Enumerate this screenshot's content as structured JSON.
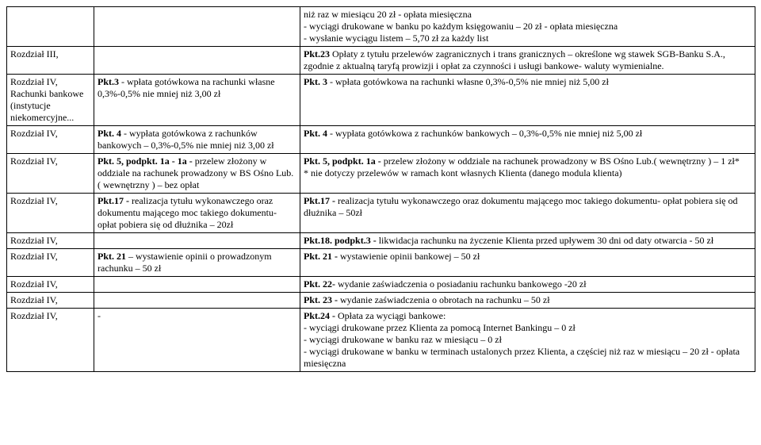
{
  "rows": [
    {
      "c1": "",
      "c2": "",
      "c3": "niż raz w miesiącu 20 zł ‑ opłata miesięczna\n‑ wyciągi drukowane w banku po każdym księgowaniu – 20 zł ‑ opłata miesięczna\n‑ wysłanie wyciągu listem – 5,70 zł za każdy list"
    },
    {
      "c1": "Rozdział III,",
      "c2": "",
      "c3_pre": "",
      "c3_bold": "Pkt.23",
      "c3_post": " Opłaty z tytułu przelewów zagranicznych i trans granicznych – określone wg stawek SGB‑Banku S.A., zgodnie z aktualną taryfą prowizji i opłat za czynności i usługi bankowe‑ waluty wymienialne."
    },
    {
      "c1": "Rozdział IV, Rachunki bankowe (instytucje niekomercyjne...",
      "c2": "",
      "c2_bold": "Pkt.3",
      "c2_rest": " ‑ wpłata gotówkowa na rachunki własne 0,3%‑0,5% nie mniej niż 3,00 zł",
      "c3_pre": "",
      "c3_bold": "Pkt. 3",
      "c3_post": " ‑ wpłata gotówkowa na rachunki własne 0,3%‑0,5% nie mniej niż 5,00 zł"
    },
    {
      "c1": "Rozdział IV,",
      "c2": "",
      "c2_bold": "Pkt. 4",
      "c2_rest": " ‑ wypłata gotówkowa z rachunków bankowych – 0,3%‑0,5% nie mniej niż 3,00 zł",
      "c3_pre": "",
      "c3_bold": "Pkt. 4",
      "c3_post": " ‑ wypłata gotówkowa z rachunków bankowych – 0,3%‑0,5% nie mniej niż 5,00 zł"
    },
    {
      "c1": "Rozdział IV,",
      "c2": "",
      "c2_bold": "Pkt. 5, podpkt. 1a ‑ 1a ‑",
      "c2_rest": " przelew złożony w oddziale na rachunek prowadzony w BS Ośno Lub.( wewnętrzny ) – bez opłat",
      "c3_bold1": "Pkt. 5, podpkt. 1a ‑",
      "c3_mid": " przelew złożony w oddziale na rachunek prowadzony w BS Ośno Lub.( wewnętrzny ) – 1 zł*\n* nie dotyczy przelewów  w ramach kont własnych Klienta (danego modula klienta)"
    },
    {
      "c1": "Rozdział IV,",
      "c2": "",
      "c2_bold": "Pkt.17 ‑",
      "c2_rest": " realizacja tytułu wykonawczego oraz dokumentu mającego moc takiego dokumentu‑ opłat pobiera się od dłużnika – 20zł",
      "c3_pre": "",
      "c3_bold": "Pkt.17 ‑",
      "c3_post": " realizacja tytułu wykonawczego oraz dokumentu mającego moc takiego dokumentu‑ opłat pobiera się od dłużnika – 50zł"
    },
    {
      "c1": "Rozdział IV,",
      "c2": "",
      "c3_pre": "",
      "c3_bold": "Pkt.18. podpkt.3 ‑",
      "c3_post": " likwidacja rachunku na życzenie Klienta przed upływem 30 dni od daty otwarcia ‑ 50 zł"
    },
    {
      "c1": "Rozdział IV,",
      "c2": "",
      "c2_bold": "Pkt. 21",
      "c2_rest": " – wystawienie opinii o prowadzonym rachunku – 50 zł",
      "c3_pre": "",
      "c3_bold": "Pkt. 21 ‑",
      "c3_post": " wystawienie opinii bankowej – 50 zł"
    },
    {
      "c1": "Rozdział IV,",
      "c2": "",
      "c3_pre": "",
      "c3_bold": "Pkt. 22‑",
      "c3_post": " wydanie zaświadczenia o posiadaniu rachunku bankowego ‑20 zł"
    },
    {
      "c1": "Rozdział IV,",
      "c2": "",
      "c3_pre": "",
      "c3_bold": "Pkt. 23 ‑",
      "c3_post": " wydanie zaświadczenia o obrotach na rachunku – 50 zł"
    },
    {
      "c1": "Rozdział IV,",
      "c2": "‑",
      "c3_bold1": "Pkt.24 ‑",
      "c3_mid": " Opłata za wyciągi bankowe:\n‑ wyciągi drukowane przez Klienta za pomocą Internet Bankingu – 0 zł\n‑ wyciągi drukowane w banku raz w miesiącu – 0 zł\n‑ wyciągi drukowane w banku w  terminach ustalonych przez Klienta, a częściej niż raz w miesiącu – 20 zł ‑ opłata miesięczna"
    }
  ]
}
